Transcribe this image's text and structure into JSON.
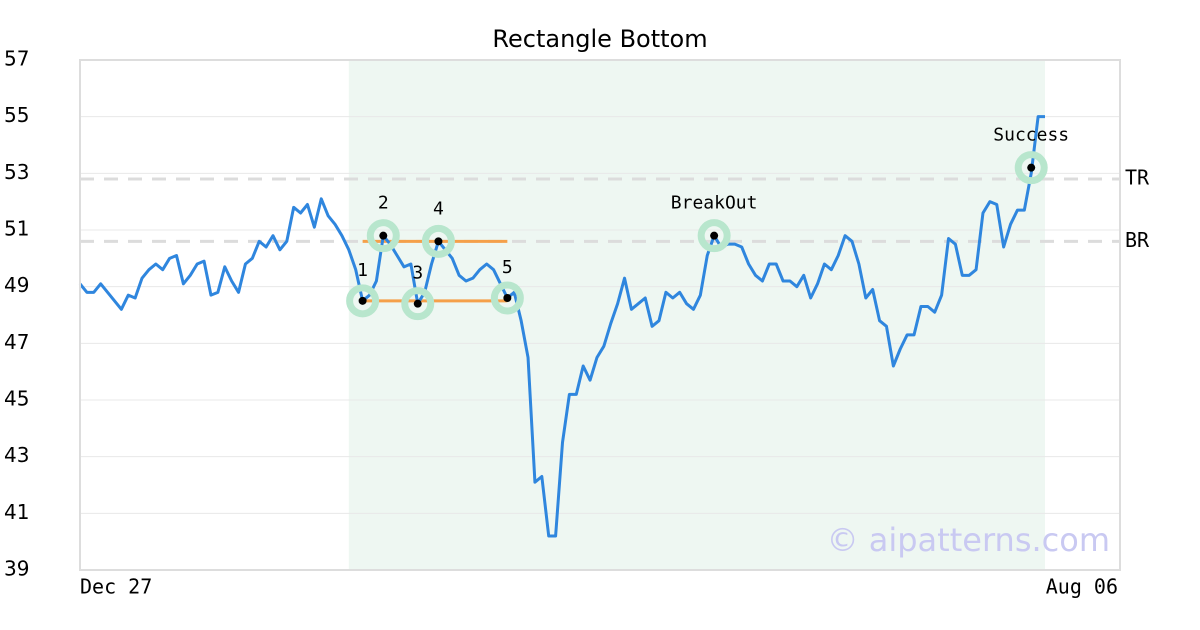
{
  "chart_data": {
    "type": "line",
    "title": "Rectangle Bottom",
    "categories": [
      "Dec 27",
      null,
      null,
      null,
      null,
      null,
      null,
      null,
      null,
      null,
      null,
      null,
      null,
      null,
      null,
      null,
      null,
      null,
      null,
      null,
      null,
      null,
      null,
      null,
      null,
      null,
      null,
      null,
      null,
      null,
      null,
      null,
      null,
      null,
      null,
      null,
      null,
      null,
      null,
      null,
      null,
      null,
      null,
      null,
      null,
      null,
      null,
      null,
      null,
      null,
      null,
      null,
      null,
      null,
      null,
      null,
      null,
      null,
      null,
      null,
      null,
      null,
      null,
      null,
      null,
      null,
      null,
      null,
      null,
      null,
      null,
      null,
      null,
      null,
      null,
      null,
      null,
      null,
      null,
      null,
      null,
      null,
      null,
      null,
      null,
      null,
      null,
      null,
      null,
      null,
      null,
      null,
      null,
      null,
      null,
      null,
      null,
      null,
      null,
      null,
      null,
      null,
      null,
      null,
      null,
      null,
      null,
      null,
      null,
      null,
      null,
      null,
      null,
      null,
      null,
      null,
      null,
      null,
      null,
      null,
      null,
      null,
      null,
      null,
      null,
      null,
      null,
      null,
      null,
      null,
      null,
      null,
      null,
      null,
      null,
      null,
      null,
      null,
      null,
      null,
      "Aug 06"
    ],
    "series": [
      {
        "color": "#2f86de",
        "values": [
          49.1,
          48.8,
          48.8,
          49.1,
          48.8,
          48.5,
          48.2,
          48.7,
          48.6,
          49.3,
          49.6,
          49.8,
          49.6,
          50.0,
          50.1,
          49.1,
          49.4,
          49.8,
          49.9,
          48.7,
          48.8,
          49.7,
          49.2,
          48.8,
          49.8,
          50.0,
          50.6,
          50.4,
          50.8,
          50.3,
          50.6,
          51.8,
          51.6,
          51.9,
          51.1,
          52.1,
          51.5,
          51.2,
          50.8,
          50.3,
          49.6,
          48.5,
          48.7,
          49.2,
          50.8,
          50.5,
          50.1,
          49.7,
          49.8,
          48.4,
          48.8,
          49.8,
          50.6,
          50.3,
          50.0,
          49.4,
          49.2,
          49.3,
          49.6,
          49.8,
          49.6,
          49.1,
          48.6,
          48.8,
          47.8,
          46.5,
          42.1,
          42.3,
          40.2,
          40.2,
          43.5,
          45.2,
          45.2,
          46.2,
          45.7,
          46.5,
          46.9,
          47.7,
          48.4,
          49.3,
          48.2,
          48.4,
          48.6,
          47.6,
          47.8,
          48.8,
          48.6,
          48.8,
          48.4,
          48.2,
          48.7,
          50.1,
          50.8,
          50.4,
          50.5,
          50.5,
          50.4,
          49.8,
          49.4,
          49.2,
          49.8,
          49.8,
          49.2,
          49.2,
          49.0,
          49.4,
          48.6,
          49.1,
          49.8,
          49.6,
          50.1,
          50.8,
          50.6,
          49.8,
          48.6,
          48.9,
          47.8,
          47.6,
          46.2,
          46.8,
          47.3,
          47.3,
          48.3,
          48.3,
          48.1,
          48.7,
          50.7,
          50.5,
          49.4,
          49.4,
          49.6,
          51.6,
          52.0,
          51.9,
          50.4,
          51.2,
          51.7,
          51.7,
          53.0,
          55.0,
          55.0
        ]
      }
    ],
    "markers": [
      {
        "x": 41,
        "value": 48.5,
        "label": "1"
      },
      {
        "x": 44,
        "value": 50.8,
        "label": "2"
      },
      {
        "x": 49,
        "value": 48.4,
        "label": "3"
      },
      {
        "x": 52,
        "value": 50.6,
        "label": "4"
      },
      {
        "x": 62,
        "value": 48.6,
        "label": "5"
      },
      {
        "x": 92,
        "value": 50.8,
        "label": "BreakOut"
      },
      {
        "x": 138,
        "value": 53.2,
        "label": "Success"
      }
    ],
    "segments": [
      {
        "x": [
          41,
          62
        ],
        "value": 50.6,
        "color": "#f5a04a"
      },
      {
        "x": [
          41,
          62
        ],
        "value": 48.5,
        "color": "#f5a04a"
      }
    ],
    "hlines": [
      {
        "value": 52.8,
        "label": "TR"
      },
      {
        "value": 50.6,
        "label": "BR"
      }
    ],
    "shaded_region": [
      39,
      140
    ],
    "ylim": [
      39,
      57
    ],
    "yticks": [
      39,
      41,
      43,
      45,
      47,
      49,
      51,
      53,
      55,
      57
    ],
    "grid": true,
    "watermark": "© aipatterns.com"
  }
}
